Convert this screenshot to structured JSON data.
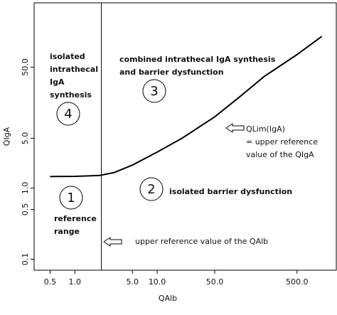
{
  "chart_data": {
    "type": "line",
    "xlabel": "QAlb",
    "ylabel": "QIgA",
    "xscale": "log",
    "yscale": "log",
    "xlim": [
      0.32,
      1500
    ],
    "ylim": [
      0.07,
      400
    ],
    "xticks": [
      {
        "value": 0.5,
        "label": "0.5"
      },
      {
        "value": 1,
        "label": "1.0"
      },
      {
        "value": 5,
        "label": "5.0"
      },
      {
        "value": 10,
        "label": "10.0"
      },
      {
        "value": 50,
        "label": "50.0"
      },
      {
        "value": 500,
        "label": "500.0"
      }
    ],
    "yticks": [
      0.1,
      0.5,
      {
        "value": 1,
        "label": "1.0"
      },
      {
        "value": 5,
        "label": "5.0"
      },
      {
        "value": 50,
        "label": "50.0"
      }
    ],
    "reference_line_x": 2.1,
    "series": [
      {
        "color": "#000000",
        "x": [
          0.5,
          1,
          2,
          3,
          5,
          10,
          20,
          50,
          100,
          200,
          500,
          1000
        ],
        "values": [
          1.45,
          1.46,
          1.5,
          1.65,
          2.1,
          3.2,
          5.0,
          10,
          19,
          37,
          75,
          135
        ]
      }
    ],
    "annotations": [
      {
        "lines": [
          "isolated",
          "intrathecal",
          "IgA",
          "synthesis"
        ]
      },
      {
        "lines": [
          "combined intrathecal IgA synthesis",
          "and barrier dysfunction"
        ]
      },
      {
        "lines": [
          "isolated barrier dysfunction"
        ]
      },
      {
        "lines": [
          "reference",
          "range"
        ]
      },
      {
        "lines": [
          "QLim(IgA)",
          "= upper reference",
          "value of the QIgA"
        ]
      },
      {
        "lines": [
          "upper reference value of the QAlb"
        ]
      }
    ],
    "regions": [
      "1",
      "2",
      "3",
      "4"
    ]
  }
}
